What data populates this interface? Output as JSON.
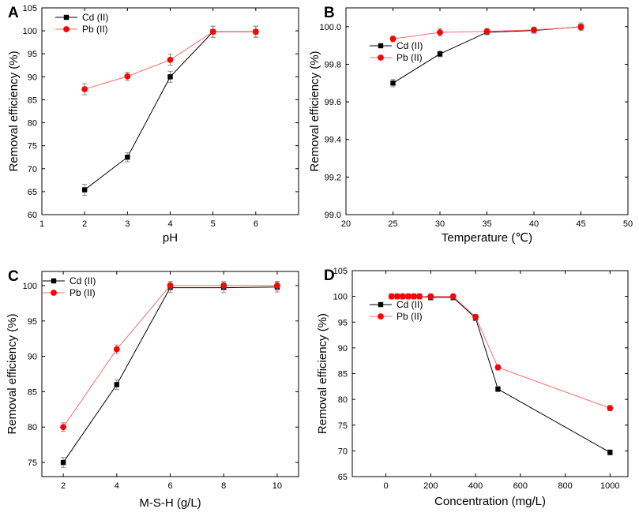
{
  "figure": {
    "background": "#ffffff"
  },
  "colors": {
    "cd": "#000000",
    "pb": "#ff0000",
    "pb_line": "#ff6b6b",
    "axis": "#000000",
    "errorbar": "#8c8c8c"
  },
  "chart_data": [
    {
      "panel": "A",
      "type": "line",
      "xlabel": "pH",
      "ylabel": "Removal efficiency (%)",
      "xlim": [
        1,
        7
      ],
      "ylim": [
        60,
        105
      ],
      "xticks": [
        1,
        2,
        3,
        4,
        5,
        6
      ],
      "yticks": [
        60,
        65,
        70,
        75,
        80,
        85,
        90,
        95,
        100,
        105
      ],
      "legend_position": "top-left",
      "series": [
        {
          "name": "Cd (II)",
          "marker": "square",
          "x": [
            2,
            3,
            4,
            5,
            6
          ],
          "y": [
            65.4,
            72.5,
            90.0,
            99.8,
            99.8
          ],
          "err": [
            1.2,
            1.0,
            1.2,
            1.2,
            1.2
          ]
        },
        {
          "name": "Pb (II)",
          "marker": "circle",
          "x": [
            2,
            3,
            4,
            5,
            6
          ],
          "y": [
            87.3,
            90.1,
            93.7,
            99.8,
            99.8
          ],
          "err": [
            1.2,
            0.9,
            1.2,
            1.2,
            1.2
          ]
        }
      ]
    },
    {
      "panel": "B",
      "type": "line",
      "xlabel": "Temperature (℃)",
      "ylabel": "Removal efficiency (%)",
      "xlim": [
        20,
        50
      ],
      "ylim": [
        99.0,
        100.1
      ],
      "xticks": [
        20,
        25,
        30,
        35,
        40,
        45,
        50
      ],
      "yticks": [
        99.0,
        99.2,
        99.4,
        99.6,
        99.8,
        100.0
      ],
      "tick_decimals": 1,
      "legend_position": "upper-left",
      "series": [
        {
          "name": "Cd (II)",
          "marker": "square",
          "x": [
            25,
            30,
            35,
            40,
            45
          ],
          "y": [
            99.7,
            99.855,
            99.97,
            99.98,
            100.0
          ],
          "err": [
            0.02,
            0.015,
            0.012,
            0.015,
            0.02
          ]
        },
        {
          "name": "Pb (II)",
          "marker": "circle",
          "x": [
            25,
            30,
            35,
            40,
            45
          ],
          "y": [
            99.935,
            99.97,
            99.975,
            99.983,
            99.998
          ],
          "err": [
            0.015,
            0.02,
            0.015,
            0.015,
            0.015
          ]
        }
      ]
    },
    {
      "panel": "C",
      "type": "line",
      "xlabel": "M-S-H (g/L)",
      "ylabel": "Removal efficiency (%)",
      "xlim": [
        1.2,
        10.8
      ],
      "ylim": [
        73,
        102
      ],
      "xticks": [
        2,
        4,
        6,
        8,
        10
      ],
      "yticks": [
        75,
        80,
        85,
        90,
        95,
        100
      ],
      "legend_position": "top-left",
      "series": [
        {
          "name": "Cd (II)",
          "marker": "square",
          "x": [
            2,
            4,
            6,
            8,
            10
          ],
          "y": [
            75.0,
            86.0,
            99.7,
            99.7,
            99.8
          ],
          "err": [
            0.7,
            0.7,
            0.7,
            0.7,
            0.7
          ]
        },
        {
          "name": "Pb (II)",
          "marker": "circle",
          "x": [
            2,
            4,
            6,
            8,
            10
          ],
          "y": [
            80.0,
            91.0,
            100.0,
            100.0,
            100.0
          ],
          "err": [
            0.6,
            0.6,
            0.6,
            0.6,
            0.6
          ]
        }
      ]
    },
    {
      "panel": "D",
      "type": "line",
      "xlabel": "Concentration (mg/L)",
      "ylabel": "Removal efficiency (%)",
      "xlim": [
        -150,
        1080
      ],
      "ylim": [
        65,
        105
      ],
      "xticks": [
        0,
        200,
        400,
        600,
        800,
        1000
      ],
      "yticks": [
        65,
        70,
        75,
        80,
        85,
        90,
        95,
        100,
        105
      ],
      "legend_position": "upper-left",
      "series": [
        {
          "name": "Cd (II)",
          "marker": "square",
          "x": [
            25,
            50,
            75,
            100,
            125,
            150,
            200,
            300,
            400,
            500,
            1000
          ],
          "y": [
            100,
            100,
            100,
            100,
            100,
            100,
            99.8,
            99.8,
            95.8,
            82.0,
            69.7
          ],
          "err": [
            0.5,
            0.5,
            0.5,
            0.5,
            0.5,
            0.5,
            0.5,
            0.5,
            0.5,
            0.5,
            0.5
          ]
        },
        {
          "name": "Pb (II)",
          "marker": "circle",
          "x": [
            25,
            50,
            75,
            100,
            125,
            150,
            200,
            300,
            400,
            500,
            1000
          ],
          "y": [
            100,
            100,
            100,
            100,
            100,
            100,
            100,
            100,
            96.0,
            86.2,
            78.3
          ],
          "err": [
            0.5,
            0.5,
            0.5,
            0.5,
            0.5,
            0.5,
            0.5,
            0.5,
            0.5,
            0.5,
            0.5
          ]
        }
      ]
    }
  ]
}
